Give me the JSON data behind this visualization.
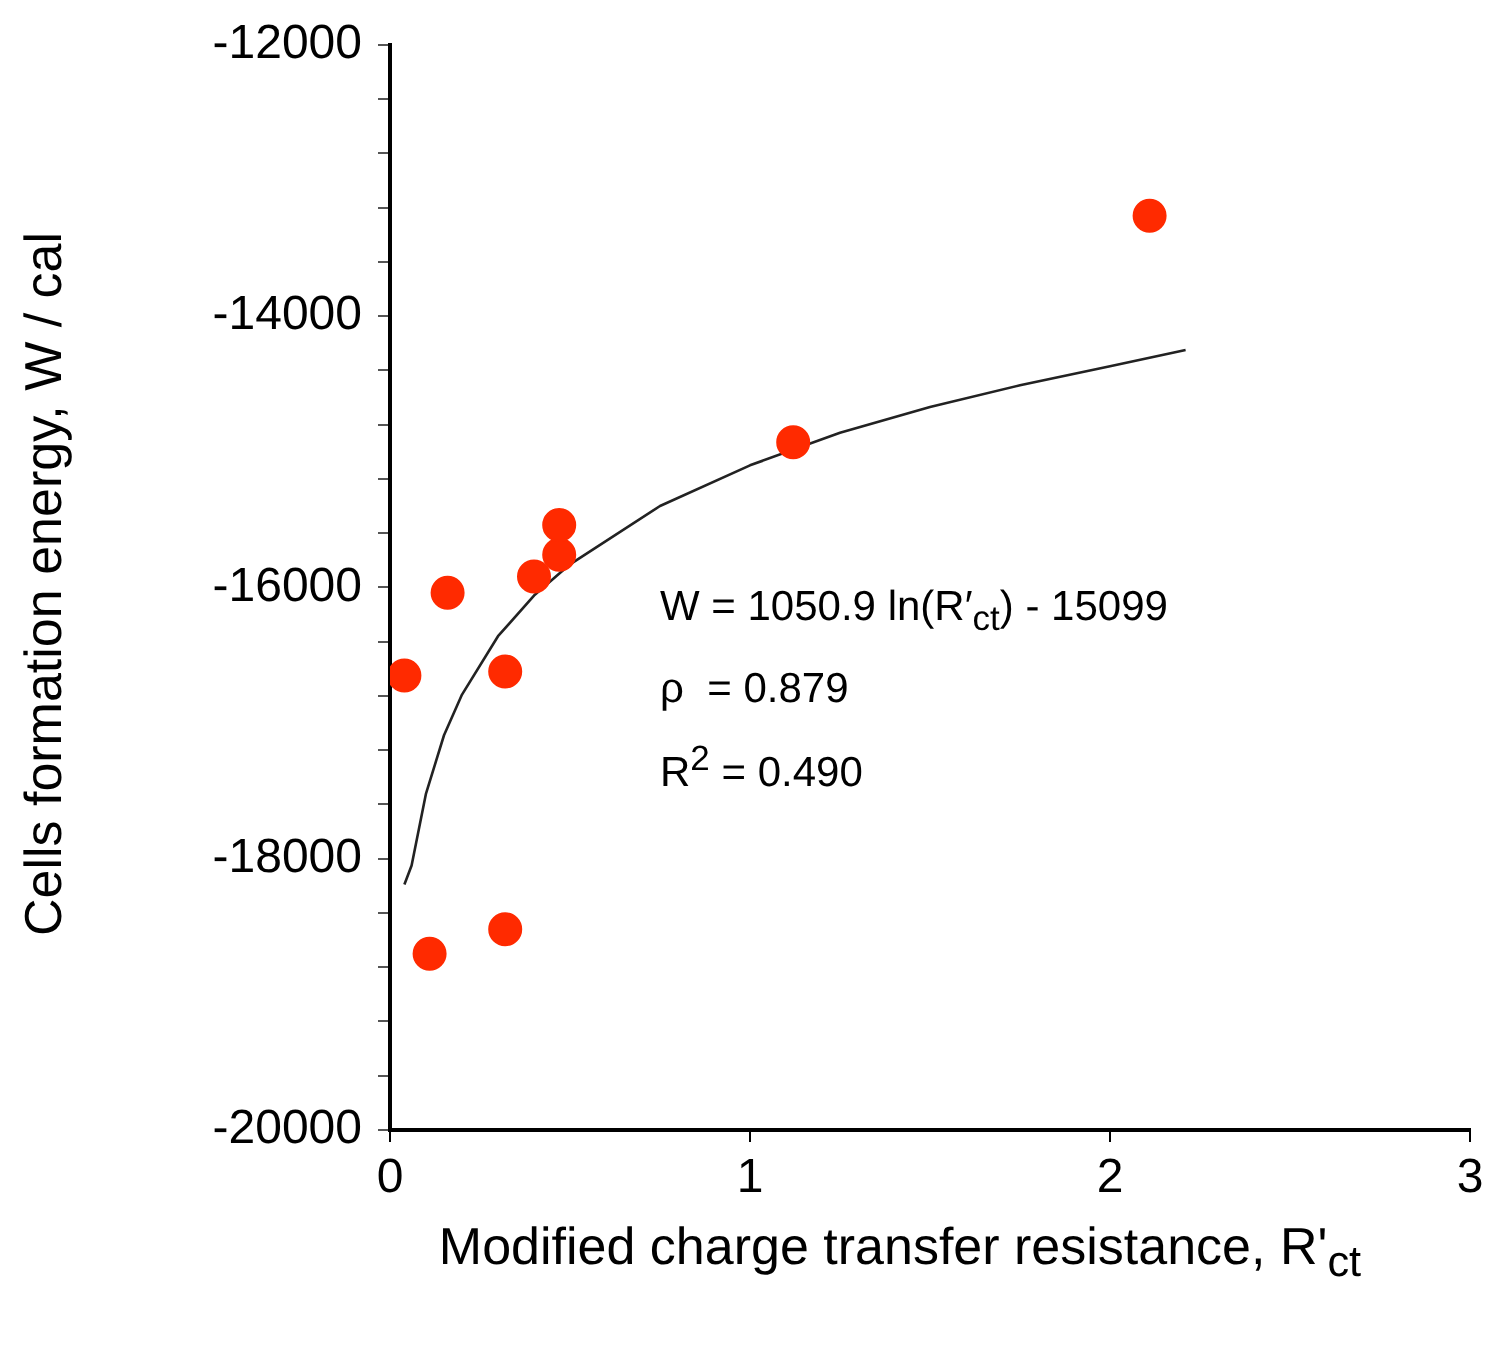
{
  "chart_data": {
    "type": "scatter",
    "xlabel": "Modified charge transfer resistance, R'$_{ct}$",
    "ylabel": "Cells formation energy, W / cal",
    "annotations": [
      "W = 1050.9 ln(R′$_{ct}$) - 15099",
      "ρ  = 0.879",
      "R$^{2}$ = 0.490"
    ],
    "series": [
      {
        "type": "scatter",
        "color": "#ff2a00",
        "marker": "circle",
        "x": [
          0.04,
          0.16,
          0.32,
          0.4,
          0.47,
          0.47,
          0.11,
          0.32,
          1.12,
          2.11
        ],
        "values": [
          -16650,
          -16040,
          -16620,
          -15920,
          -15760,
          -15540,
          -18700,
          -18520,
          -14930,
          -13260
        ]
      },
      {
        "type": "line",
        "color": "#222222",
        "marker": "none",
        "x": [
          0.04,
          0.06,
          0.1,
          0.15,
          0.2,
          0.3,
          0.4,
          0.5,
          0.75,
          1,
          1.25,
          1.5,
          1.75,
          2,
          2.21
        ],
        "values": [
          -18190,
          -18050,
          -17520,
          -17090,
          -16790,
          -16360,
          -16060,
          -15830,
          -15400,
          -15100,
          -14860,
          -14670,
          -14510,
          -14370,
          -14250
        ]
      }
    ],
    "xlim": [
      0,
      3
    ],
    "xticks": [
      0,
      1,
      2,
      3
    ],
    "ylim": [
      -20000,
      -12000
    ],
    "yticks": [
      -20000,
      {
        "value": -19600,
        "label": null
      },
      {
        "value": -19200,
        "label": null
      },
      {
        "value": -18800,
        "label": null
      },
      {
        "value": -18400,
        "label": null
      },
      -18000,
      {
        "value": -17600,
        "label": null
      },
      {
        "value": -17200,
        "label": null
      },
      {
        "value": -16800,
        "label": null
      },
      {
        "value": -16400,
        "label": null
      },
      -16000,
      {
        "value": -15600,
        "label": null
      },
      {
        "value": -15200,
        "label": null
      },
      {
        "value": -14800,
        "label": null
      },
      {
        "value": -14400,
        "label": null
      },
      -14000,
      {
        "value": -13600,
        "label": null
      },
      {
        "value": -13200,
        "label": null
      },
      {
        "value": -12800,
        "label": null
      },
      {
        "value": -12400,
        "label": null
      },
      -12000
    ],
    "grid": false,
    "legend": false
  }
}
